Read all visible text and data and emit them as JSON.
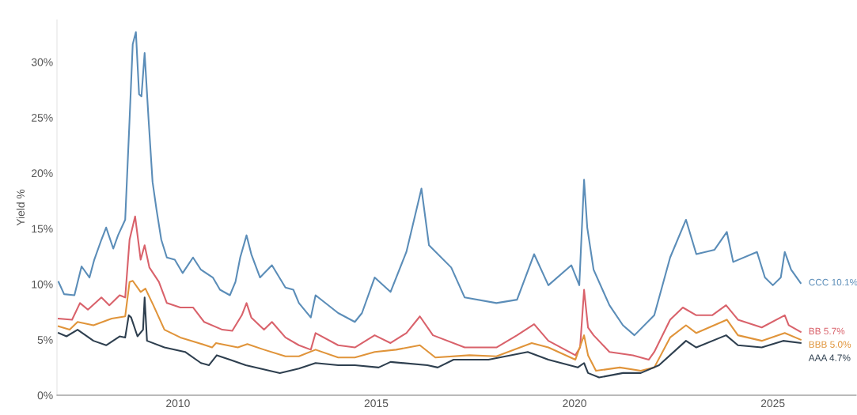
{
  "chart_data": {
    "type": "line",
    "ylabel": "Yield %",
    "xlim": [
      2006.95,
      2027.1
    ],
    "xticks": [
      2010,
      2015,
      2020,
      2025
    ],
    "ylim": [
      0,
      33.8
    ],
    "yticks": [
      {
        "value": 0,
        "label": "0%"
      },
      {
        "value": 5,
        "label": "5%"
      },
      {
        "value": 10,
        "label": "10%"
      },
      {
        "value": 15,
        "label": "15%"
      },
      {
        "value": 20,
        "label": "20%"
      },
      {
        "value": 25,
        "label": "25%"
      },
      {
        "value": 30,
        "label": "30%"
      }
    ],
    "grid": false,
    "legend": false,
    "marker": "none",
    "line_style": "solid",
    "series": [
      {
        "name": "CCC 10.1%",
        "color": "#5b8db8",
        "x": [
          2006.99,
          2007.13,
          2007.39,
          2007.57,
          2007.77,
          2007.89,
          2008.07,
          2008.19,
          2008.37,
          2008.49,
          2008.67,
          2008.78,
          2008.86,
          2008.94,
          2009.02,
          2009.08,
          2009.16,
          2009.26,
          2009.36,
          2009.46,
          2009.58,
          2009.72,
          2009.92,
          2010.12,
          2010.38,
          2010.58,
          2010.88,
          2011.06,
          2011.31,
          2011.45,
          2011.57,
          2011.73,
          2011.85,
          2012.07,
          2012.37,
          2012.71,
          2012.91,
          2013.05,
          2013.35,
          2013.47,
          2014.04,
          2014.46,
          2014.64,
          2014.96,
          2015.36,
          2015.76,
          2016.14,
          2016.33,
          2016.89,
          2017.23,
          2018.03,
          2018.55,
          2018.98,
          2019.34,
          2019.92,
          2020.12,
          2020.24,
          2020.32,
          2020.48,
          2020.88,
          2021.22,
          2021.51,
          2022.01,
          2022.41,
          2022.81,
          2023.07,
          2023.53,
          2023.84,
          2024.0,
          2024.6,
          2024.8,
          2025.0,
          2025.2,
          2025.3,
          2025.46,
          2025.7
        ],
        "values": [
          10.2,
          9.1,
          9.0,
          11.6,
          10.6,
          12.2,
          14.0,
          15.1,
          13.2,
          14.4,
          15.8,
          24.8,
          31.6,
          32.7,
          27.1,
          26.9,
          30.8,
          24.8,
          19.2,
          16.7,
          14.0,
          12.4,
          12.2,
          11.0,
          12.4,
          11.3,
          10.6,
          9.5,
          9.0,
          10.2,
          12.4,
          14.4,
          12.7,
          10.6,
          11.7,
          9.7,
          9.5,
          8.3,
          7.0,
          9.0,
          7.4,
          6.6,
          7.4,
          10.6,
          9.3,
          12.9,
          18.6,
          13.5,
          11.5,
          8.8,
          8.3,
          8.6,
          12.7,
          9.9,
          11.7,
          9.9,
          19.4,
          15.1,
          11.3,
          8.1,
          6.3,
          5.4,
          7.2,
          12.4,
          15.8,
          12.7,
          13.1,
          14.7,
          12.0,
          12.9,
          10.6,
          9.9,
          10.6,
          12.9,
          11.3,
          10.1
        ]
      },
      {
        "name": "BB 5.7%",
        "color": "#d9626b",
        "x": [
          2006.99,
          2007.33,
          2007.53,
          2007.73,
          2008.07,
          2008.27,
          2008.53,
          2008.67,
          2008.78,
          2008.92,
          2009.06,
          2009.16,
          2009.28,
          2009.52,
          2009.72,
          2010.06,
          2010.38,
          2010.66,
          2011.12,
          2011.37,
          2011.61,
          2011.73,
          2011.85,
          2012.17,
          2012.37,
          2012.71,
          2013.05,
          2013.35,
          2013.47,
          2014.04,
          2014.46,
          2014.96,
          2015.36,
          2015.76,
          2016.1,
          2016.43,
          2017.23,
          2018.03,
          2018.55,
          2018.98,
          2019.34,
          2020.02,
          2020.14,
          2020.24,
          2020.34,
          2020.48,
          2020.88,
          2021.47,
          2021.87,
          2022.01,
          2022.41,
          2022.73,
          2023.07,
          2023.47,
          2023.82,
          2024.12,
          2024.72,
          2025.3,
          2025.4,
          2025.7
        ],
        "values": [
          6.9,
          6.8,
          8.3,
          7.7,
          8.8,
          8.1,
          9.0,
          8.8,
          14.0,
          16.1,
          12.2,
          13.5,
          11.5,
          10.2,
          8.3,
          7.9,
          7.9,
          6.6,
          5.9,
          5.8,
          7.2,
          8.3,
          7.0,
          5.9,
          6.6,
          5.2,
          4.5,
          4.1,
          5.6,
          4.5,
          4.3,
          5.4,
          4.7,
          5.6,
          7.1,
          5.4,
          4.3,
          4.3,
          5.4,
          6.4,
          4.9,
          3.6,
          4.3,
          9.5,
          6.1,
          5.4,
          3.9,
          3.6,
          3.2,
          3.9,
          6.8,
          7.9,
          7.2,
          7.2,
          8.1,
          6.8,
          6.1,
          7.2,
          6.3,
          5.7
        ]
      },
      {
        "name": "BBB 5.0%",
        "color": "#e0943a",
        "x": [
          2006.99,
          2007.27,
          2007.47,
          2007.87,
          2008.33,
          2008.67,
          2008.78,
          2008.86,
          2009.06,
          2009.18,
          2009.38,
          2009.66,
          2010.06,
          2010.52,
          2010.86,
          2010.96,
          2011.51,
          2011.75,
          2012.17,
          2012.71,
          2013.05,
          2013.47,
          2014.04,
          2014.46,
          2014.96,
          2015.5,
          2016.1,
          2016.49,
          2017.35,
          2018.03,
          2018.92,
          2019.34,
          2020.02,
          2020.24,
          2020.34,
          2020.54,
          2021.14,
          2021.67,
          2022.01,
          2022.41,
          2022.81,
          2023.07,
          2023.84,
          2024.12,
          2024.72,
          2025.3,
          2025.7
        ],
        "values": [
          6.2,
          5.9,
          6.6,
          6.3,
          6.9,
          7.1,
          10.2,
          10.3,
          9.3,
          9.6,
          8.1,
          5.9,
          5.2,
          4.7,
          4.3,
          4.7,
          4.3,
          4.6,
          4.1,
          3.5,
          3.5,
          4.1,
          3.4,
          3.4,
          3.9,
          4.1,
          4.5,
          3.4,
          3.6,
          3.5,
          4.7,
          4.3,
          3.2,
          5.4,
          3.6,
          2.2,
          2.5,
          2.2,
          2.5,
          5.2,
          6.3,
          5.6,
          6.8,
          5.4,
          4.9,
          5.6,
          5.0
        ]
      },
      {
        "name": "AAA 4.7%",
        "color": "#2e3f4f",
        "x": [
          2006.99,
          2007.19,
          2007.47,
          2007.87,
          2008.19,
          2008.53,
          2008.67,
          2008.76,
          2008.82,
          2008.98,
          2009.12,
          2009.16,
          2009.22,
          2009.66,
          2010.18,
          2010.58,
          2010.78,
          2010.98,
          2011.31,
          2011.71,
          2012.57,
          2013.05,
          2013.47,
          2014.04,
          2014.46,
          2015.06,
          2015.36,
          2016.29,
          2016.55,
          2016.95,
          2017.83,
          2018.82,
          2019.34,
          2020.08,
          2020.24,
          2020.34,
          2020.62,
          2021.22,
          2021.67,
          2022.13,
          2022.81,
          2023.07,
          2023.82,
          2024.12,
          2024.72,
          2025.26,
          2025.7
        ],
        "values": [
          5.6,
          5.3,
          5.9,
          4.9,
          4.5,
          5.3,
          5.2,
          7.2,
          7.0,
          5.3,
          5.9,
          8.8,
          4.9,
          4.3,
          3.9,
          2.9,
          2.7,
          3.6,
          3.2,
          2.7,
          2.0,
          2.4,
          2.9,
          2.7,
          2.7,
          2.5,
          3.0,
          2.7,
          2.5,
          3.2,
          3.2,
          3.9,
          3.2,
          2.5,
          2.9,
          2.0,
          1.6,
          2.0,
          2.0,
          2.7,
          4.9,
          4.3,
          5.4,
          4.5,
          4.3,
          4.9,
          4.7
        ]
      }
    ]
  }
}
